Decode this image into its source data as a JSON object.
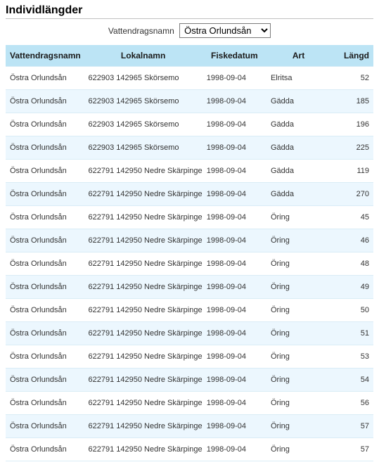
{
  "title": "Individlängder",
  "filter": {
    "label": "Vattendragsnamn",
    "selected": "Östra Orlundsån"
  },
  "table": {
    "columns": {
      "vattendragsnamn": "Vattendragsnamn",
      "lokalnamn": "Lokalnamn",
      "fiskedatum": "Fiskedatum",
      "art": "Art",
      "langd": "Längd"
    },
    "header_bg": "#BCE4F5",
    "row_alt_bg": "#ECF7FE",
    "rows": [
      {
        "vdn": "Östra Orlundsån",
        "lokal": "622903 142965 Skörsemo",
        "datum": "1998-09-04",
        "art": "Elritsa",
        "langd": 52
      },
      {
        "vdn": "Östra Orlundsån",
        "lokal": "622903 142965 Skörsemo",
        "datum": "1998-09-04",
        "art": "Gädda",
        "langd": 185
      },
      {
        "vdn": "Östra Orlundsån",
        "lokal": "622903 142965 Skörsemo",
        "datum": "1998-09-04",
        "art": "Gädda",
        "langd": 196
      },
      {
        "vdn": "Östra Orlundsån",
        "lokal": "622903 142965 Skörsemo",
        "datum": "1998-09-04",
        "art": "Gädda",
        "langd": 225
      },
      {
        "vdn": "Östra Orlundsån",
        "lokal": "622791 142950 Nedre Skärpinge",
        "datum": "1998-09-04",
        "art": "Gädda",
        "langd": 119
      },
      {
        "vdn": "Östra Orlundsån",
        "lokal": "622791 142950 Nedre Skärpinge",
        "datum": "1998-09-04",
        "art": "Gädda",
        "langd": 270
      },
      {
        "vdn": "Östra Orlundsån",
        "lokal": "622791 142950 Nedre Skärpinge",
        "datum": "1998-09-04",
        "art": "Öring",
        "langd": 45
      },
      {
        "vdn": "Östra Orlundsån",
        "lokal": "622791 142950 Nedre Skärpinge",
        "datum": "1998-09-04",
        "art": "Öring",
        "langd": 46
      },
      {
        "vdn": "Östra Orlundsån",
        "lokal": "622791 142950 Nedre Skärpinge",
        "datum": "1998-09-04",
        "art": "Öring",
        "langd": 48
      },
      {
        "vdn": "Östra Orlundsån",
        "lokal": "622791 142950 Nedre Skärpinge",
        "datum": "1998-09-04",
        "art": "Öring",
        "langd": 49
      },
      {
        "vdn": "Östra Orlundsån",
        "lokal": "622791 142950 Nedre Skärpinge",
        "datum": "1998-09-04",
        "art": "Öring",
        "langd": 50
      },
      {
        "vdn": "Östra Orlundsån",
        "lokal": "622791 142950 Nedre Skärpinge",
        "datum": "1998-09-04",
        "art": "Öring",
        "langd": 51
      },
      {
        "vdn": "Östra Orlundsån",
        "lokal": "622791 142950 Nedre Skärpinge",
        "datum": "1998-09-04",
        "art": "Öring",
        "langd": 53
      },
      {
        "vdn": "Östra Orlundsån",
        "lokal": "622791 142950 Nedre Skärpinge",
        "datum": "1998-09-04",
        "art": "Öring",
        "langd": 54
      },
      {
        "vdn": "Östra Orlundsån",
        "lokal": "622791 142950 Nedre Skärpinge",
        "datum": "1998-09-04",
        "art": "Öring",
        "langd": 56
      },
      {
        "vdn": "Östra Orlundsån",
        "lokal": "622791 142950 Nedre Skärpinge",
        "datum": "1998-09-04",
        "art": "Öring",
        "langd": 57
      },
      {
        "vdn": "Östra Orlundsån",
        "lokal": "622791 142950 Nedre Skärpinge",
        "datum": "1998-09-04",
        "art": "Öring",
        "langd": 57
      }
    ]
  }
}
